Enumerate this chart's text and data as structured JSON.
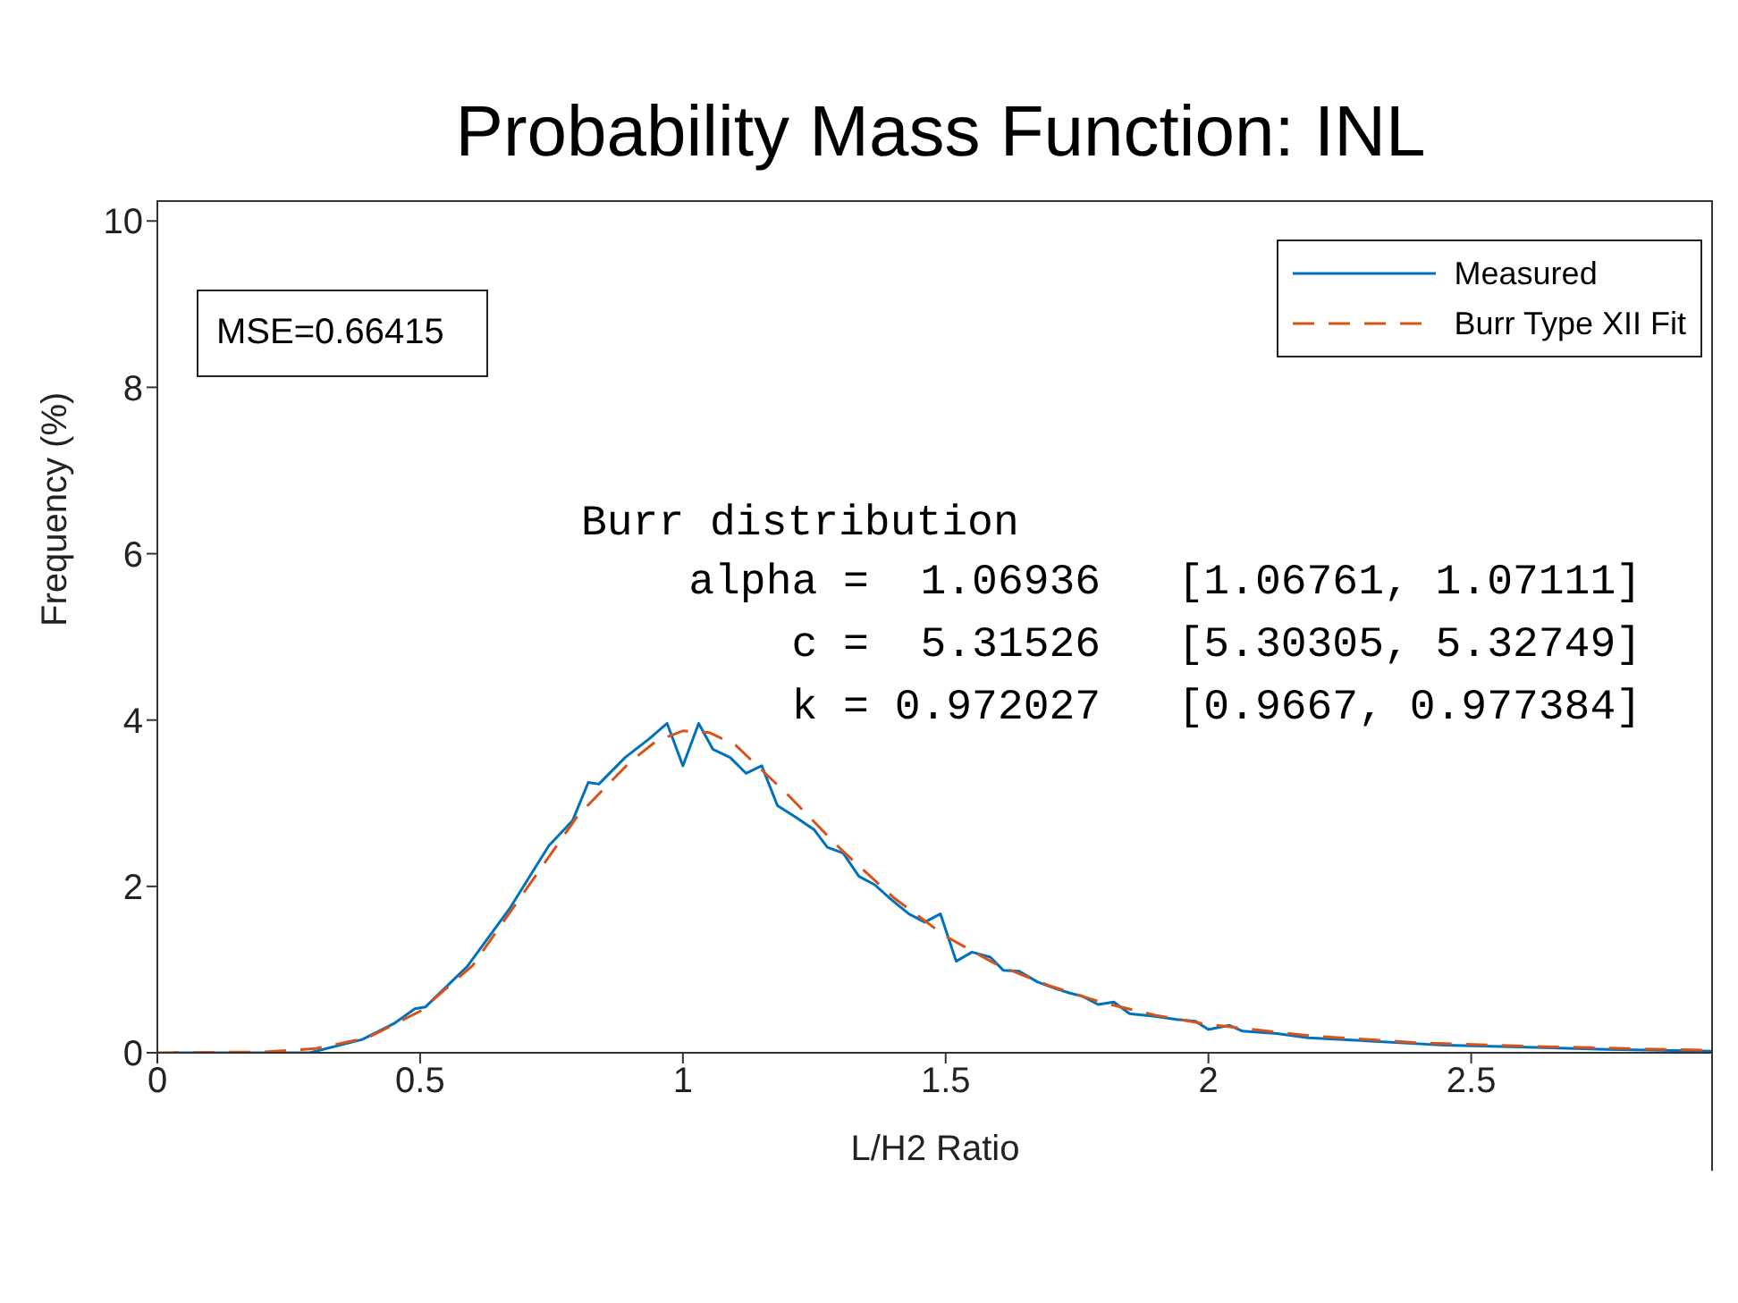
{
  "chart_data": {
    "type": "line",
    "title": "Probability Mass Function: INL",
    "xlabel": "L/H2 Ratio",
    "ylabel": "Frequency (%)",
    "xlim": [
      0,
      2.96
    ],
    "ylim": [
      0,
      10.25
    ],
    "xticks": [
      0,
      0.5,
      1,
      1.5,
      2,
      2.5
    ],
    "yticks": [
      0,
      2,
      4,
      6,
      8,
      10
    ],
    "grid": false,
    "legend": "top right",
    "marker": "none",
    "series": [
      {
        "name": "Measured",
        "color": "#0072bd",
        "line_style": "solid",
        "x": [
          0.03,
          0.29,
          0.39,
          0.45,
          0.49,
          0.51,
          0.59,
          0.67,
          0.745,
          0.79,
          0.82,
          0.84,
          0.89,
          0.935,
          0.97,
          1.0,
          1.03,
          1.057,
          1.09,
          1.12,
          1.15,
          1.18,
          1.215,
          1.25,
          1.275,
          1.305,
          1.335,
          1.365,
          1.395,
          1.43,
          1.46,
          1.49,
          1.52,
          1.55,
          1.585,
          1.61,
          1.64,
          1.675,
          1.71,
          1.735,
          1.76,
          1.79,
          1.82,
          1.85,
          1.895,
          1.94,
          1.975,
          2.0,
          2.04,
          2.065,
          2.13,
          2.19,
          2.31,
          2.45,
          2.59,
          2.76,
          2.96
        ],
        "values": [
          0,
          0,
          0.16,
          0.35,
          0.53,
          0.55,
          1.04,
          1.73,
          2.49,
          2.79,
          3.25,
          3.23,
          3.55,
          3.77,
          3.96,
          3.45,
          3.96,
          3.65,
          3.55,
          3.36,
          3.45,
          2.97,
          2.83,
          2.68,
          2.47,
          2.4,
          2.12,
          2.02,
          1.85,
          1.67,
          1.57,
          1.67,
          1.1,
          1.21,
          1.15,
          0.99,
          0.98,
          0.85,
          0.77,
          0.72,
          0.68,
          0.58,
          0.61,
          0.47,
          0.44,
          0.4,
          0.38,
          0.28,
          0.33,
          0.26,
          0.23,
          0.18,
          0.14,
          0.09,
          0.07,
          0.04,
          0.02
        ]
      },
      {
        "name": "Burr Type XII Fit",
        "color": "#d95319",
        "line_style": "dashed",
        "x": [
          0,
          0.2,
          0.3,
          0.4,
          0.5,
          0.6,
          0.7,
          0.8,
          0.9,
          0.95,
          1.0,
          1.05,
          1.1,
          1.2,
          1.3,
          1.4,
          1.5,
          1.6,
          1.7,
          1.8,
          1.9,
          2.0,
          2.2,
          2.4,
          2.6,
          2.8,
          2.96
        ],
        "values": [
          0,
          0.01,
          0.05,
          0.18,
          0.5,
          1.05,
          1.95,
          2.85,
          3.5,
          3.75,
          3.87,
          3.85,
          3.7,
          3.1,
          2.45,
          1.87,
          1.4,
          1.05,
          0.8,
          0.6,
          0.45,
          0.34,
          0.2,
          0.12,
          0.08,
          0.05,
          0.03
        ]
      }
    ],
    "annotations": [
      "MSE=0.66415",
      "Burr distribution",
      "alpha =  1.06936   [1.06761, 1.07111]",
      "c =  5.31526   [5.30305, 5.32749]",
      "k = 0.972027   [0.9667, 0.977384]"
    ]
  }
}
